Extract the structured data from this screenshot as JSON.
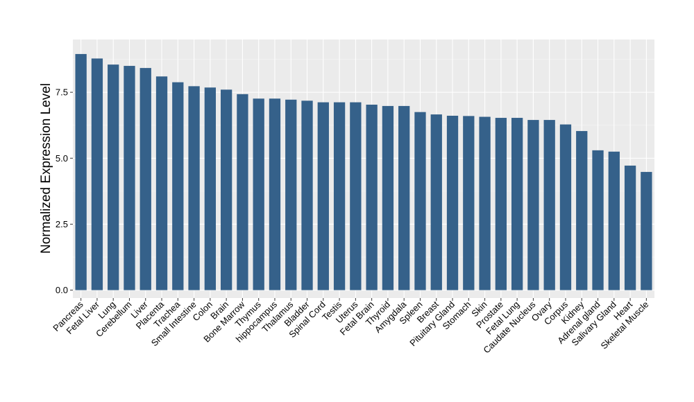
{
  "chart_data": {
    "type": "bar",
    "title": "",
    "xlabel": "",
    "ylabel": "Normalized Expression Level",
    "ylim": [
      -0.3,
      9.5
    ],
    "yticks": [
      0.0,
      2.5,
      5.0,
      7.5
    ],
    "ytick_labels": [
      "0.0",
      "2.5",
      "5.0",
      "7.5"
    ],
    "grid": true,
    "legend": "none",
    "colors": {
      "bar": "#35618a",
      "panel": "#ebebeb",
      "grid_major": "#ffffff",
      "grid_minor": "#f5f5f5"
    },
    "categories": [
      "Pancreas",
      "Fetal Liver",
      "Lung",
      "Cerebellum",
      "Liver",
      "Placenta",
      "Trachea",
      "Small Intestine",
      "Colon",
      "Brain",
      "Bone Marrow",
      "Thymus",
      "hippocampus",
      "Thalamus",
      "Bladder",
      "Spinal Cord",
      "Testis",
      "Uterus",
      "Fetal Brain",
      "Thyroid",
      "Amygdala",
      "Spleen",
      "Breast",
      "Pituitary Gland",
      "Stomach",
      "Skin",
      "Prostate",
      "Fetal Lung",
      "Caudate Nucleus",
      "Ovary",
      "Corpus",
      "Kidney",
      "Adrenal gland",
      "Salivary Gland",
      "Heart",
      "Skeletal Muscle"
    ],
    "values": [
      8.95,
      8.78,
      8.55,
      8.5,
      8.42,
      8.1,
      7.88,
      7.73,
      7.68,
      7.6,
      7.43,
      7.26,
      7.26,
      7.22,
      7.18,
      7.12,
      7.12,
      7.12,
      7.03,
      6.98,
      6.98,
      6.75,
      6.66,
      6.61,
      6.6,
      6.57,
      6.53,
      6.53,
      6.45,
      6.45,
      6.28,
      6.03,
      5.3,
      5.25,
      4.72,
      4.48
    ]
  }
}
